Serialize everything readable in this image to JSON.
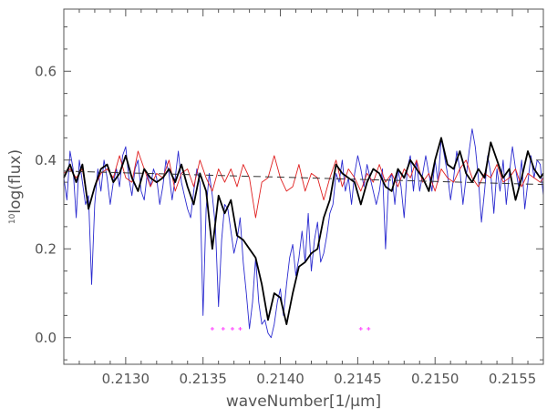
{
  "chart_data": {
    "type": "line",
    "title": "",
    "xlabel": "waveNumber[1/μm]",
    "ylabel_prefix": "10",
    "ylabel_main": "log(flux)",
    "xlim": [
      0.2126,
      0.2157
    ],
    "ylim": [
      -0.06,
      0.74
    ],
    "x_ticks": [
      "0.2130",
      "0.2135",
      "0.2140",
      "0.2145",
      "0.2150",
      "0.2155"
    ],
    "x_tick_values": [
      0.213,
      0.2135,
      0.214,
      0.2145,
      0.215,
      0.2155
    ],
    "y_ticks": [
      "0.0",
      "0.2",
      "0.4",
      "0.6"
    ],
    "y_tick_values": [
      0.0,
      0.2,
      0.4,
      0.6
    ],
    "grid": false,
    "colors": {
      "blue": "#2a2ad0",
      "black": "#000000",
      "red": "#e02020",
      "dashed": "#333333",
      "markers": "#ff40ff",
      "axes": "#555555"
    },
    "series": [
      {
        "style": "blue-thin",
        "x": [
          0.2126,
          0.21262,
          0.21264,
          0.21266,
          0.21268,
          0.2127,
          0.21272,
          0.21274,
          0.21276,
          0.21278,
          0.2128,
          0.21282,
          0.21284,
          0.21286,
          0.21288,
          0.2129,
          0.21292,
          0.21294,
          0.21296,
          0.21298,
          0.213,
          0.21302,
          0.21304,
          0.21306,
          0.21308,
          0.2131,
          0.21312,
          0.21314,
          0.21316,
          0.21318,
          0.2132,
          0.21322,
          0.21324,
          0.21326,
          0.21328,
          0.2133,
          0.21332,
          0.21334,
          0.21336,
          0.21338,
          0.2134,
          0.21342,
          0.21344,
          0.21346,
          0.21348,
          0.2135,
          0.21352,
          0.21354,
          0.21356,
          0.21358,
          0.2136,
          0.21362,
          0.21364,
          0.21366,
          0.21368,
          0.2137,
          0.21372,
          0.21374,
          0.21376,
          0.21378,
          0.2138,
          0.21382,
          0.21384,
          0.21386,
          0.21388,
          0.2139,
          0.21392,
          0.21394,
          0.21396,
          0.21398,
          0.214,
          0.21402,
          0.21404,
          0.21406,
          0.21408,
          0.2141,
          0.21412,
          0.21414,
          0.21416,
          0.21418,
          0.2142,
          0.21422,
          0.21424,
          0.21426,
          0.21428,
          0.2143,
          0.21432,
          0.21434,
          0.21436,
          0.21438,
          0.2144,
          0.21442,
          0.21444,
          0.21446,
          0.21448,
          0.2145,
          0.21452,
          0.21454,
          0.21456,
          0.21458,
          0.2146,
          0.21462,
          0.21464,
          0.21466,
          0.21468,
          0.2147,
          0.21472,
          0.21474,
          0.21476,
          0.21478,
          0.2148,
          0.21482,
          0.21484,
          0.21486,
          0.21488,
          0.2149,
          0.21492,
          0.21494,
          0.21496,
          0.21498,
          0.215,
          0.21502,
          0.21504,
          0.21506,
          0.21508,
          0.2151,
          0.21512,
          0.21514,
          0.21516,
          0.21518,
          0.2152,
          0.21522,
          0.21524,
          0.21526,
          0.21528,
          0.2153,
          0.21532,
          0.21534,
          0.21536,
          0.21538,
          0.2154,
          0.21542,
          0.21544,
          0.21546,
          0.21548,
          0.2155,
          0.21552,
          0.21554,
          0.21556,
          0.21558,
          0.2156,
          0.21562,
          0.21564,
          0.21566,
          0.21568,
          0.2157
        ],
        "y": [
          0.36,
          0.31,
          0.42,
          0.38,
          0.27,
          0.4,
          0.35,
          0.3,
          0.32,
          0.12,
          0.3,
          0.38,
          0.33,
          0.4,
          0.36,
          0.3,
          0.35,
          0.38,
          0.34,
          0.41,
          0.43,
          0.36,
          0.32,
          0.38,
          0.4,
          0.33,
          0.31,
          0.37,
          0.34,
          0.38,
          0.36,
          0.3,
          0.34,
          0.4,
          0.37,
          0.31,
          0.36,
          0.42,
          0.35,
          0.32,
          0.29,
          0.27,
          0.33,
          0.38,
          0.35,
          0.05,
          0.29,
          0.37,
          0.32,
          0.25,
          0.07,
          0.22,
          0.3,
          0.29,
          0.24,
          0.19,
          0.22,
          0.27,
          0.17,
          0.1,
          0.02,
          0.08,
          0.18,
          0.08,
          0.03,
          0.04,
          0.01,
          0.0,
          0.03,
          0.08,
          0.11,
          0.05,
          0.12,
          0.18,
          0.21,
          0.14,
          0.18,
          0.24,
          0.17,
          0.28,
          0.15,
          0.22,
          0.26,
          0.17,
          0.19,
          0.23,
          0.28,
          0.3,
          0.37,
          0.35,
          0.4,
          0.33,
          0.36,
          0.3,
          0.37,
          0.41,
          0.38,
          0.34,
          0.39,
          0.36,
          0.33,
          0.3,
          0.33,
          0.38,
          0.2,
          0.35,
          0.37,
          0.3,
          0.38,
          0.34,
          0.27,
          0.38,
          0.41,
          0.33,
          0.4,
          0.33,
          0.37,
          0.41,
          0.37,
          0.33,
          0.4,
          0.35,
          0.45,
          0.41,
          0.37,
          0.31,
          0.36,
          0.42,
          0.38,
          0.3,
          0.36,
          0.42,
          0.47,
          0.43,
          0.36,
          0.26,
          0.33,
          0.41,
          0.37,
          0.28,
          0.38,
          0.33,
          0.4,
          0.3,
          0.37,
          0.43,
          0.38,
          0.34,
          0.4,
          0.29,
          0.35,
          0.41,
          0.36,
          0.4,
          0.39,
          0.32
        ]
      },
      {
        "style": "black-smooth",
        "x": [
          0.2126,
          0.21264,
          0.21268,
          0.21272,
          0.21276,
          0.2128,
          0.21284,
          0.21288,
          0.21292,
          0.21296,
          0.213,
          0.21304,
          0.21308,
          0.21312,
          0.21316,
          0.2132,
          0.21324,
          0.21328,
          0.21332,
          0.21336,
          0.2134,
          0.21344,
          0.21348,
          0.21352,
          0.21356,
          0.2136,
          0.21364,
          0.21368,
          0.21372,
          0.21376,
          0.2138,
          0.21384,
          0.21388,
          0.21392,
          0.21396,
          0.214,
          0.21404,
          0.21408,
          0.21412,
          0.21416,
          0.2142,
          0.21424,
          0.21428,
          0.21432,
          0.21436,
          0.2144,
          0.21444,
          0.21448,
          0.21452,
          0.21456,
          0.2146,
          0.21464,
          0.21468,
          0.21472,
          0.21476,
          0.2148,
          0.21484,
          0.21488,
          0.21492,
          0.21496,
          0.215,
          0.21504,
          0.21508,
          0.21512,
          0.21516,
          0.2152,
          0.21524,
          0.21528,
          0.21532,
          0.21536,
          0.2154,
          0.21544,
          0.21548,
          0.21552,
          0.21556,
          0.2156,
          0.21564,
          0.21568,
          0.2157
        ],
        "y": [
          0.36,
          0.39,
          0.35,
          0.39,
          0.29,
          0.34,
          0.38,
          0.39,
          0.35,
          0.37,
          0.41,
          0.36,
          0.33,
          0.38,
          0.36,
          0.35,
          0.36,
          0.38,
          0.35,
          0.39,
          0.34,
          0.3,
          0.37,
          0.33,
          0.2,
          0.32,
          0.28,
          0.31,
          0.23,
          0.22,
          0.2,
          0.18,
          0.12,
          0.04,
          0.1,
          0.09,
          0.03,
          0.1,
          0.16,
          0.17,
          0.19,
          0.2,
          0.27,
          0.31,
          0.39,
          0.37,
          0.36,
          0.35,
          0.3,
          0.35,
          0.38,
          0.37,
          0.34,
          0.33,
          0.38,
          0.36,
          0.4,
          0.38,
          0.36,
          0.33,
          0.4,
          0.45,
          0.39,
          0.38,
          0.42,
          0.37,
          0.35,
          0.38,
          0.36,
          0.44,
          0.4,
          0.36,
          0.38,
          0.31,
          0.36,
          0.42,
          0.38,
          0.36,
          0.37
        ]
      },
      {
        "style": "red-thin",
        "x": [
          0.2126,
          0.21264,
          0.21268,
          0.21272,
          0.21276,
          0.2128,
          0.21284,
          0.21288,
          0.21292,
          0.21296,
          0.213,
          0.21304,
          0.21308,
          0.21312,
          0.21316,
          0.2132,
          0.21324,
          0.21328,
          0.21332,
          0.21336,
          0.2134,
          0.21344,
          0.21348,
          0.21352,
          0.21356,
          0.2136,
          0.21364,
          0.21368,
          0.21372,
          0.21376,
          0.2138,
          0.21384,
          0.21388,
          0.21392,
          0.21396,
          0.214,
          0.21404,
          0.21408,
          0.21412,
          0.21416,
          0.2142,
          0.21424,
          0.21428,
          0.21432,
          0.21436,
          0.2144,
          0.21444,
          0.21448,
          0.21452,
          0.21456,
          0.2146,
          0.21464,
          0.21468,
          0.21472,
          0.21476,
          0.2148,
          0.21484,
          0.21488,
          0.21492,
          0.21496,
          0.215,
          0.21504,
          0.21508,
          0.21512,
          0.21516,
          0.2152,
          0.21524,
          0.21528,
          0.21532,
          0.21536,
          0.2154,
          0.21544,
          0.21548,
          0.21552,
          0.21556,
          0.2156,
          0.21564,
          0.21568,
          0.2157
        ],
        "y": [
          0.37,
          0.38,
          0.36,
          0.38,
          0.29,
          0.34,
          0.37,
          0.38,
          0.36,
          0.41,
          0.36,
          0.35,
          0.42,
          0.38,
          0.34,
          0.37,
          0.36,
          0.4,
          0.33,
          0.37,
          0.38,
          0.34,
          0.4,
          0.36,
          0.33,
          0.38,
          0.35,
          0.38,
          0.34,
          0.39,
          0.36,
          0.27,
          0.35,
          0.36,
          0.41,
          0.36,
          0.33,
          0.34,
          0.39,
          0.33,
          0.37,
          0.36,
          0.31,
          0.36,
          0.4,
          0.34,
          0.38,
          0.36,
          0.33,
          0.37,
          0.35,
          0.39,
          0.35,
          0.37,
          0.34,
          0.38,
          0.36,
          0.4,
          0.35,
          0.37,
          0.33,
          0.38,
          0.36,
          0.35,
          0.38,
          0.4,
          0.36,
          0.34,
          0.37,
          0.36,
          0.39,
          0.35,
          0.36,
          0.38,
          0.34,
          0.37,
          0.36,
          0.35,
          0.36
        ]
      },
      {
        "style": "dashed",
        "x": [
          0.2126,
          0.2157
        ],
        "y": [
          0.375,
          0.345
        ]
      }
    ],
    "markers": {
      "x": [
        0.21356,
        0.21363,
        0.21369,
        0.21374,
        0.21452,
        0.21457
      ],
      "y": [
        0.02,
        0.02,
        0.02,
        0.02,
        0.02,
        0.02
      ]
    }
  }
}
